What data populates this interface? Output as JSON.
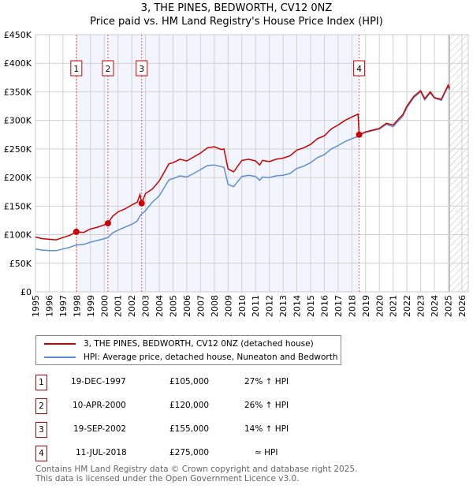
{
  "title": [
    "3, THE PINES, BEDWORTH, CV12 0NZ",
    "Price paid vs. HM Land Registry's House Price Index (HPI)"
  ],
  "chart_data": {
    "type": "line",
    "title": "3, THE PINES, BEDWORTH, CV12 0NZ - Price paid vs. HM Land Registry's House Price Index (HPI)",
    "xlim": [
      1995,
      2026
    ],
    "ylim": [
      0,
      450000
    ],
    "x_ticks": [
      "1995",
      "1996",
      "1997",
      "1998",
      "1999",
      "2000",
      "2001",
      "2002",
      "2003",
      "2004",
      "2005",
      "2006",
      "2007",
      "2008",
      "2009",
      "2010",
      "2011",
      "2012",
      "2013",
      "2014",
      "2015",
      "2016",
      "2017",
      "2018",
      "2019",
      "2020",
      "2021",
      "2022",
      "2023",
      "2024",
      "2025",
      "2026"
    ],
    "y_ticks": [
      {
        "v": 0,
        "l": "£0"
      },
      {
        "v": 50000,
        "l": "£50K"
      },
      {
        "v": 100000,
        "l": "£100K"
      },
      {
        "v": 150000,
        "l": "£150K"
      },
      {
        "v": 200000,
        "l": "£200K"
      },
      {
        "v": 250000,
        "l": "£250K"
      },
      {
        "v": 300000,
        "l": "£300K"
      },
      {
        "v": 350000,
        "l": "£350K"
      },
      {
        "v": 400000,
        "l": "£400K"
      },
      {
        "v": 450000,
        "l": "£450K"
      }
    ],
    "grid": true,
    "shaded_range": [
      1997.97,
      2018.53
    ],
    "forecast_hatch_from": 2025.1,
    "series": [
      {
        "name": "3, THE PINES, BEDWORTH, CV12 0NZ (detached house)",
        "color": "#cc0000",
        "x": [
          1995,
          1995.5,
          1996,
          1996.5,
          1997,
          1997.5,
          1997.97,
          1998.5,
          1999,
          1999.5,
          2000,
          2000.27,
          2000.6,
          2001,
          2001.5,
          2002,
          2002.4,
          2002.6,
          2002.72,
          2003,
          2003.5,
          2004,
          2004.7,
          2005,
          2005.5,
          2006,
          2006.5,
          2007,
          2007.5,
          2008,
          2008.5,
          2008.7,
          2009,
          2009.4,
          2010,
          2010.5,
          2011,
          2011.3,
          2011.5,
          2012,
          2012.5,
          2013,
          2013.5,
          2014,
          2014.5,
          2015,
          2015.5,
          2016,
          2016.5,
          2017,
          2017.5,
          2018,
          2018.45,
          2018.53,
          2019,
          2019.5,
          2020,
          2020.5,
          2021,
          2021.3,
          2021.7,
          2022,
          2022.5,
          2023,
          2023.3,
          2023.7,
          2024,
          2024.5,
          2025,
          2025.1
        ],
        "y": [
          96000,
          93000,
          92000,
          91000,
          95000,
          99000,
          105000,
          104000,
          110000,
          113000,
          117000,
          120000,
          132000,
          140000,
          145000,
          152000,
          157000,
          170000,
          155000,
          172000,
          180000,
          194000,
          224000,
          226000,
          232000,
          229000,
          236000,
          243000,
          252000,
          254000,
          249000,
          250000,
          215000,
          210000,
          230000,
          232000,
          229000,
          222000,
          230000,
          228000,
          232000,
          234000,
          238000,
          248000,
          252000,
          258000,
          268000,
          273000,
          285000,
          292000,
          300000,
          306000,
          311000,
          275000,
          280000,
          283000,
          286000,
          295000,
          292000,
          300000,
          310000,
          325000,
          342000,
          352000,
          338000,
          350000,
          340000,
          337000,
          362000,
          356000
        ]
      },
      {
        "name": "HPI: Average price, detached house, Nuneaton and Bedworth",
        "color": "#5f8fd0",
        "x": [
          1995,
          1995.5,
          1996,
          1996.5,
          1997,
          1997.5,
          1997.97,
          1998.5,
          1999,
          1999.5,
          2000,
          2000.27,
          2000.6,
          2001,
          2001.5,
          2002,
          2002.4,
          2002.6,
          2002.72,
          2003,
          2003.5,
          2004,
          2004.7,
          2005,
          2005.5,
          2006,
          2006.5,
          2007,
          2007.5,
          2008,
          2008.5,
          2008.7,
          2009,
          2009.4,
          2010,
          2010.5,
          2011,
          2011.3,
          2011.5,
          2012,
          2012.5,
          2013,
          2013.5,
          2014,
          2014.5,
          2015,
          2015.5,
          2016,
          2016.5,
          2017,
          2017.5,
          2018,
          2018.45,
          2018.53,
          2019,
          2019.5,
          2020,
          2020.5,
          2021,
          2021.3,
          2021.7,
          2022,
          2022.5,
          2023,
          2023.3,
          2023.7,
          2024,
          2024.5,
          2025,
          2025.1
        ],
        "y": [
          75000,
          73000,
          72000,
          72000,
          75000,
          78000,
          82000,
          83000,
          87000,
          90000,
          93000,
          95000,
          103000,
          108000,
          113000,
          118000,
          124000,
          133000,
          136000,
          142000,
          157000,
          168000,
          196000,
          198000,
          203000,
          201000,
          207000,
          214000,
          221000,
          222000,
          219000,
          218000,
          188000,
          184000,
          202000,
          204000,
          202000,
          195000,
          201000,
          200000,
          203000,
          204000,
          207000,
          216000,
          220000,
          226000,
          235000,
          240000,
          250000,
          256000,
          263000,
          268000,
          272000,
          275000,
          279000,
          282000,
          285000,
          293000,
          289000,
          297000,
          307000,
          322000,
          340000,
          350000,
          336000,
          348000,
          339000,
          335000,
          360000,
          354000
        ]
      }
    ],
    "sales": [
      {
        "n": "1",
        "x": 1997.97,
        "y": 105000
      },
      {
        "n": "2",
        "x": 2000.27,
        "y": 120000
      },
      {
        "n": "3",
        "x": 2002.72,
        "y": 155000
      },
      {
        "n": "4",
        "x": 2018.53,
        "y": 275000
      }
    ]
  },
  "legend": [
    {
      "label": "3, THE PINES, BEDWORTH, CV12 0NZ (detached house)",
      "color": "#cc0000"
    },
    {
      "label": "HPI: Average price, detached house, Nuneaton and Bedworth",
      "color": "#5f8fd0"
    }
  ],
  "transactions": [
    {
      "n": "1",
      "date": "19-DEC-1997",
      "price": "£105,000",
      "hpi": "27% ↑ HPI"
    },
    {
      "n": "2",
      "date": "10-APR-2000",
      "price": "£120,000",
      "hpi": "26% ↑ HPI"
    },
    {
      "n": "3",
      "date": "19-SEP-2002",
      "price": "£155,000",
      "hpi": "14% ↑ HPI"
    },
    {
      "n": "4",
      "date": "11-JUL-2018",
      "price": "£275,000",
      "hpi": "≈ HPI"
    }
  ],
  "footer": [
    "Contains HM Land Registry data © Crown copyright and database right 2025.",
    "This data is licensed under the Open Government Licence v3.0."
  ]
}
